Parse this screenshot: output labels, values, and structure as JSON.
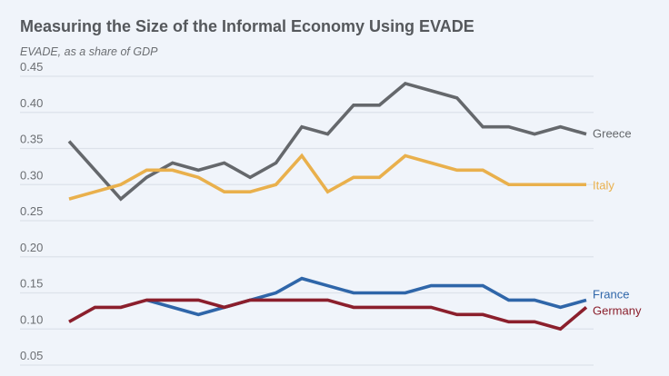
{
  "chart_data": {
    "type": "line",
    "title": "Measuring the Size of the Informal Economy Using EVADE",
    "subtitle": "EVADE, as a share of GDP",
    "ylim": [
      0.05,
      0.45
    ],
    "yticks": [
      "0.45",
      "0.40",
      "0.35",
      "0.30",
      "0.25",
      "0.20",
      "0.15",
      "0.10",
      "0.05"
    ],
    "grid": true,
    "legend": "inline-right",
    "series": [
      {
        "name": "Greece",
        "color": "#65686c",
        "values": [
          0.36,
          0.32,
          0.28,
          0.31,
          0.33,
          0.32,
          0.33,
          0.31,
          0.33,
          0.38,
          0.37,
          0.41,
          0.41,
          0.44,
          0.43,
          0.42,
          0.38,
          0.38,
          0.37,
          0.38,
          0.37
        ]
      },
      {
        "name": "Italy",
        "color": "#e9b04c",
        "values": [
          0.28,
          0.29,
          0.3,
          0.32,
          0.32,
          0.31,
          0.29,
          0.29,
          0.3,
          0.34,
          0.29,
          0.31,
          0.31,
          0.34,
          0.33,
          0.32,
          0.32,
          0.3,
          0.3,
          0.3,
          0.3
        ]
      },
      {
        "name": "France",
        "color": "#2f66a9",
        "values": [
          null,
          null,
          null,
          0.14,
          0.13,
          0.12,
          0.13,
          0.14,
          0.15,
          0.17,
          0.16,
          0.15,
          0.15,
          0.15,
          0.16,
          0.16,
          0.16,
          0.14,
          0.14,
          0.13,
          0.14
        ]
      },
      {
        "name": "Germany",
        "color": "#8b1f2c",
        "values": [
          0.11,
          0.13,
          0.13,
          0.14,
          0.14,
          0.14,
          0.13,
          0.14,
          0.14,
          0.14,
          0.14,
          0.13,
          0.13,
          0.13,
          0.13,
          0.12,
          0.12,
          0.11,
          0.11,
          0.1,
          0.13
        ]
      }
    ]
  }
}
